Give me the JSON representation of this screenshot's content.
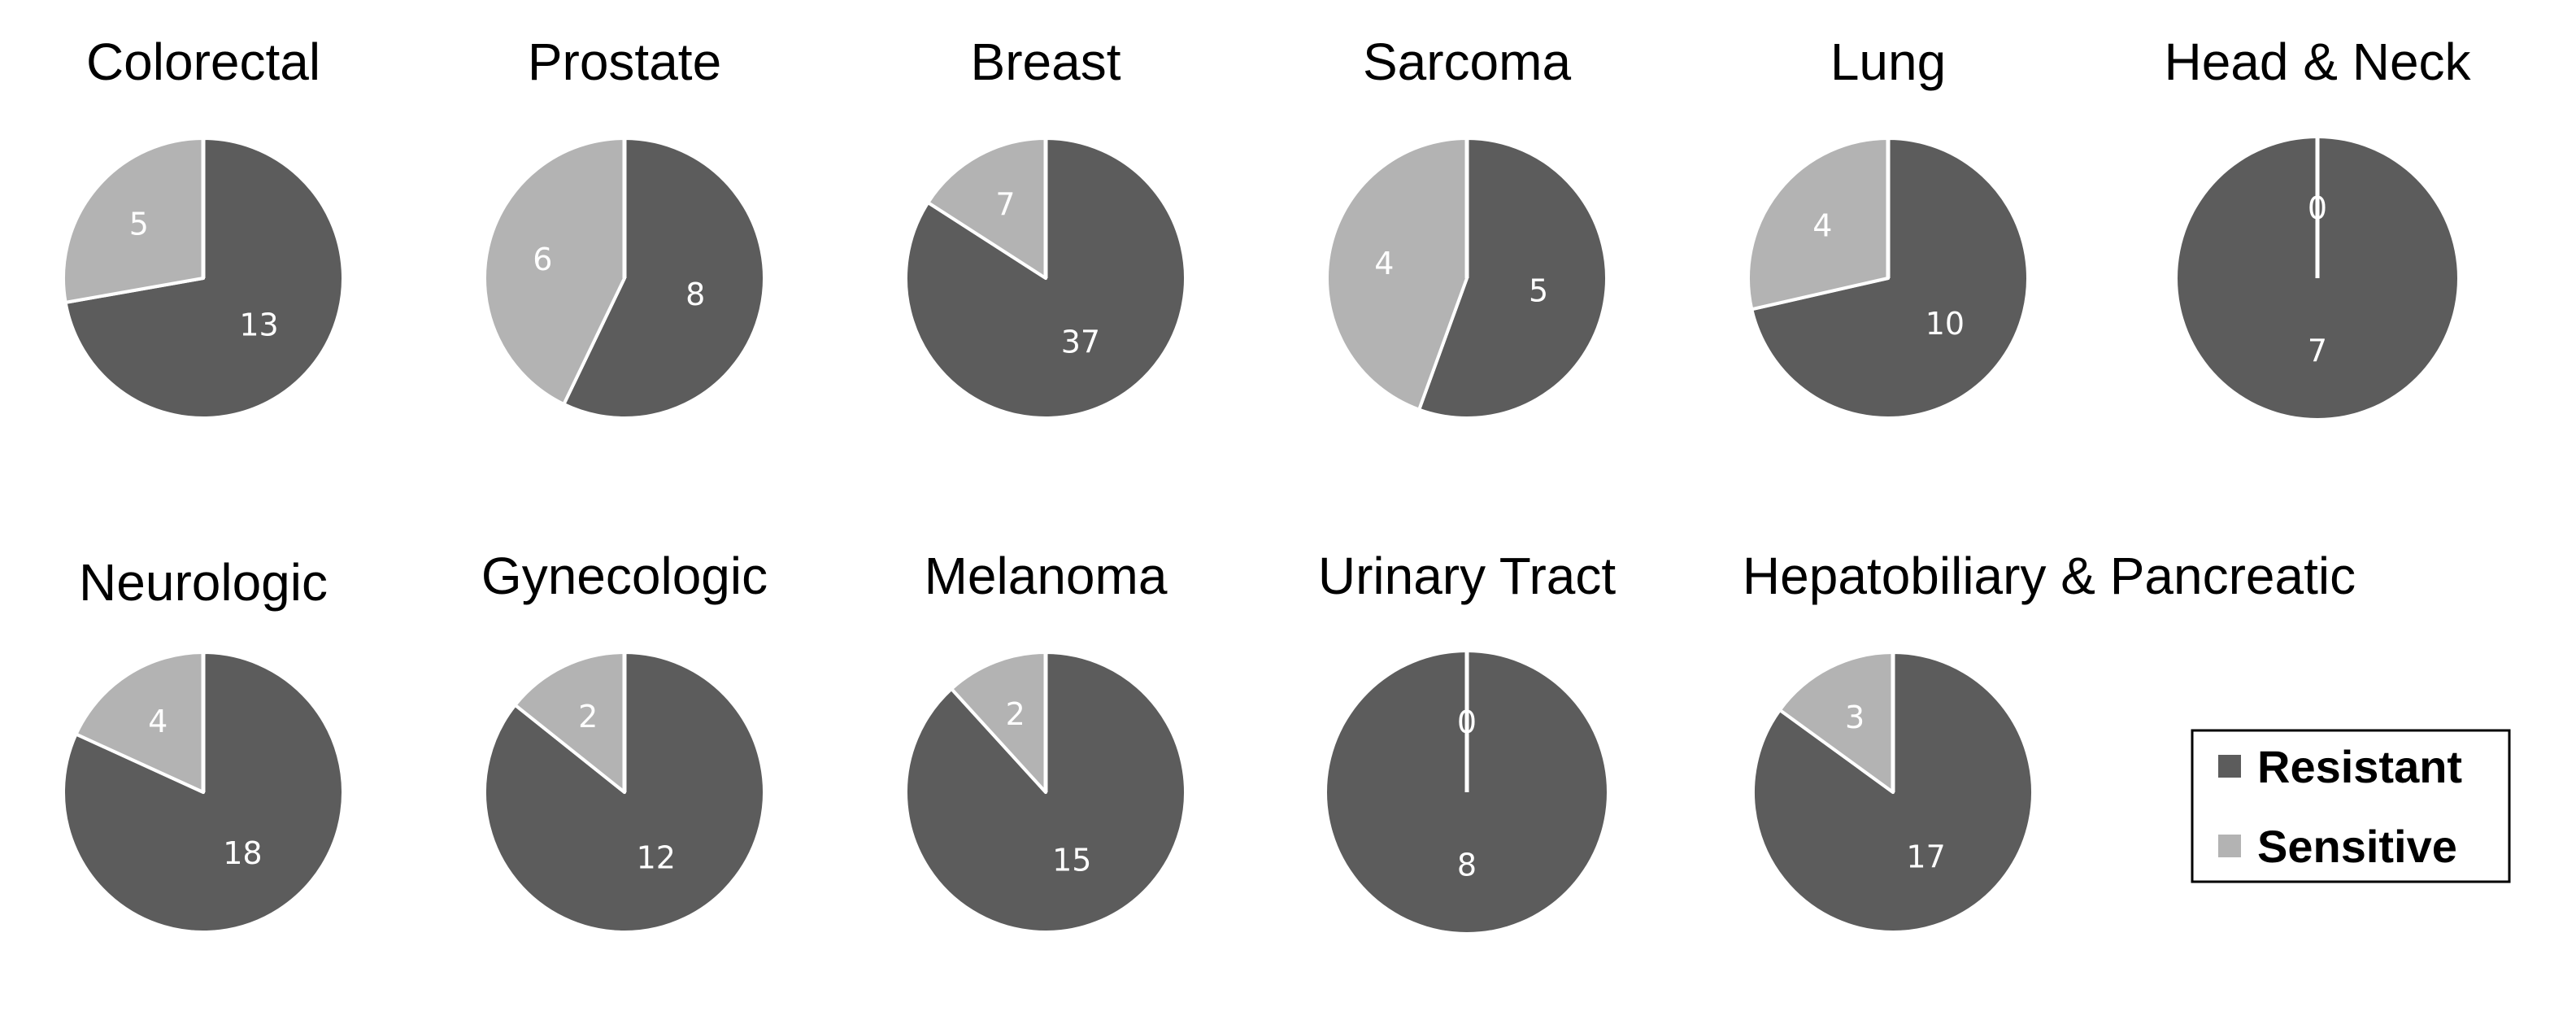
{
  "chart_data": [
    {
      "type": "pie",
      "title": "Colorectal",
      "slices": [
        {
          "label": "Resistant",
          "value": 13
        },
        {
          "label": "Sensitive",
          "value": 5
        }
      ]
    },
    {
      "type": "pie",
      "title": "Prostate",
      "slices": [
        {
          "label": "Resistant",
          "value": 8
        },
        {
          "label": "Sensitive",
          "value": 6
        }
      ]
    },
    {
      "type": "pie",
      "title": "Breast",
      "slices": [
        {
          "label": "Resistant",
          "value": 37
        },
        {
          "label": "Sensitive",
          "value": 7
        }
      ]
    },
    {
      "type": "pie",
      "title": "Sarcoma",
      "slices": [
        {
          "label": "Resistant",
          "value": 5
        },
        {
          "label": "Sensitive",
          "value": 4
        }
      ]
    },
    {
      "type": "pie",
      "title": "Lung",
      "slices": [
        {
          "label": "Resistant",
          "value": 10
        },
        {
          "label": "Sensitive",
          "value": 4
        }
      ]
    },
    {
      "type": "pie",
      "title": "Head & Neck",
      "slices": [
        {
          "label": "Resistant",
          "value": 7
        },
        {
          "label": "Sensitive",
          "value": 0
        }
      ]
    },
    {
      "type": "pie",
      "title": "Neurologic",
      "slices": [
        {
          "label": "Resistant",
          "value": 18
        },
        {
          "label": "Sensitive",
          "value": 4
        }
      ]
    },
    {
      "type": "pie",
      "title": "Gynecologic",
      "slices": [
        {
          "label": "Resistant",
          "value": 12
        },
        {
          "label": "Sensitive",
          "value": 2
        }
      ]
    },
    {
      "type": "pie",
      "title": "Melanoma",
      "slices": [
        {
          "label": "Resistant",
          "value": 15
        },
        {
          "label": "Sensitive",
          "value": 2
        }
      ]
    },
    {
      "type": "pie",
      "title": "Urinary Tract",
      "slices": [
        {
          "label": "Resistant",
          "value": 8
        },
        {
          "label": "Sensitive",
          "value": 0
        }
      ]
    },
    {
      "type": "pie",
      "title": "Hepatobiliary & Pancreatic",
      "slices": [
        {
          "label": "Resistant",
          "value": 17
        },
        {
          "label": "Sensitive",
          "value": 3
        }
      ]
    }
  ],
  "legend": {
    "placement": "bottom-right",
    "items": [
      {
        "label": "Resistant",
        "color": "#5c5c5c"
      },
      {
        "label": "Sensitive",
        "color": "#b3b3b3"
      }
    ]
  },
  "colors": {
    "Resistant": "#5c5c5c",
    "Sensitive": "#b3b3b3",
    "slice_border": "#ffffff"
  }
}
